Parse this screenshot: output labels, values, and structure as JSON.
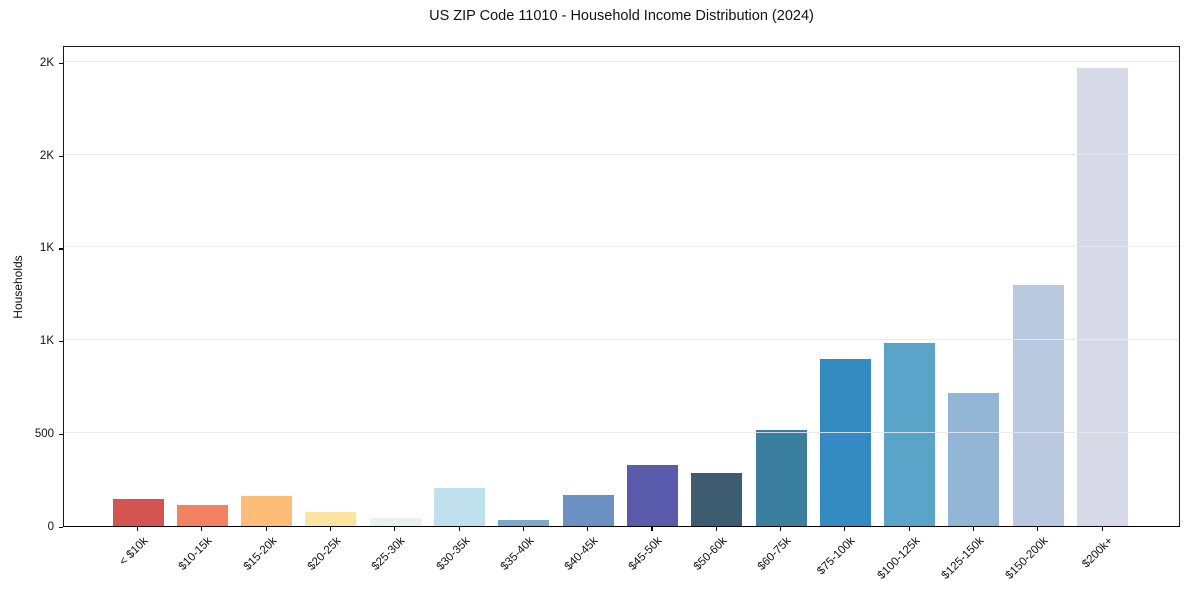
{
  "chart_data": {
    "type": "bar",
    "title": "US ZIP Code 11010 - Household Income Distribution (2024)",
    "xlabel": "",
    "ylabel": "Households",
    "categories": [
      "< $10k",
      "$10-15k",
      "$15-20k",
      "$20-25k",
      "$25-30k",
      "$30-35k",
      "$35-40k",
      "$40-45k",
      "$45-50k",
      "$50-60k",
      "$60-75k",
      "$75-100k",
      "$100-125k",
      "$125-150k",
      "$150-200k",
      "$200k+"
    ],
    "values": [
      145,
      116,
      162,
      74,
      42,
      205,
      30,
      168,
      328,
      286,
      518,
      901,
      985,
      716,
      1296,
      2468
    ],
    "bar_colors": [
      "#d4544f",
      "#f48162",
      "#fcbd79",
      "#fce5a0",
      "#e8f2f0",
      "#bfe0ec",
      "#7da8cb",
      "#6b90c4",
      "#5a5cab",
      "#3d5c70",
      "#3a7fa0",
      "#348bc2",
      "#5ba4c9",
      "#92b5d6",
      "#b8c9e0",
      "#d7d9e6"
    ],
    "ylim": [
      0,
      2590
    ],
    "yticks": [
      {
        "value": 0,
        "label": "0"
      },
      {
        "value": 500,
        "label": "500"
      },
      {
        "value": 1000,
        "label": "1K"
      },
      {
        "value": 1500,
        "label": "1K"
      },
      {
        "value": 2000,
        "label": "2K"
      },
      {
        "value": 2500,
        "label": "2K"
      }
    ],
    "grid": "horizontal",
    "grid_color": "rgba(231,231,238,0.85)",
    "legend": null,
    "x_label_rotation_deg": 45,
    "background_color": "#ffffff",
    "spine_color": "#1a1a1a"
  }
}
